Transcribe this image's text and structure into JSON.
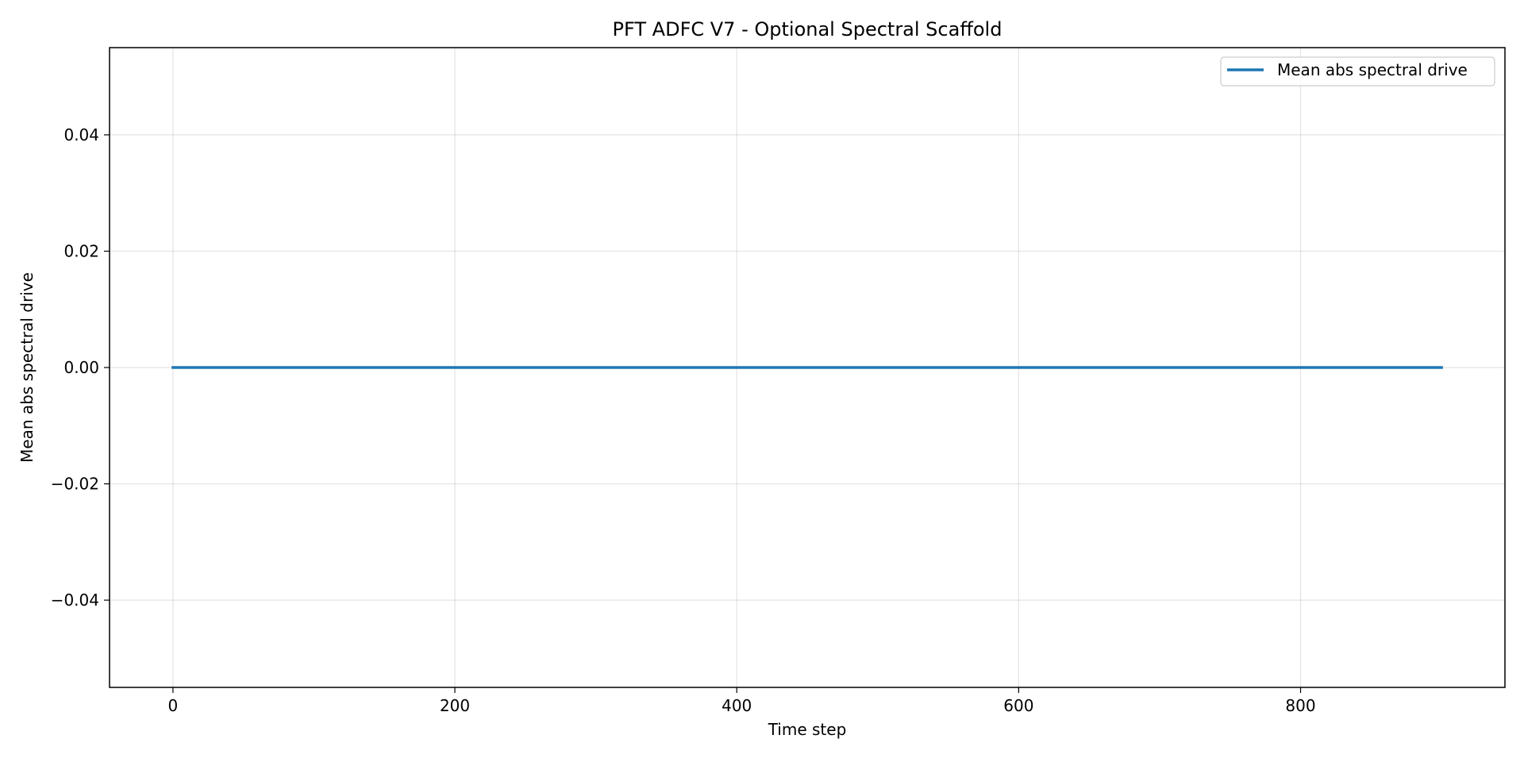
{
  "chart_data": {
    "type": "line",
    "title": "PFT ADFC V7 - Optional Spectral Scaffold",
    "xlabel": "Time step",
    "ylabel": "Mean abs spectral drive",
    "xlim": [
      -45,
      945
    ],
    "ylim": [
      -0.055,
      0.055
    ],
    "xticks": [
      0,
      200,
      400,
      600,
      800
    ],
    "xtick_labels": [
      "0",
      "200",
      "400",
      "600",
      "800"
    ],
    "yticks": [
      -0.04,
      -0.02,
      0.0,
      0.02,
      0.04
    ],
    "ytick_labels": [
      "−0.04",
      "−0.02",
      "0.00",
      "0.02",
      "0.04"
    ],
    "grid": true,
    "legend_position": "top-right",
    "series": [
      {
        "name": "Mean abs spectral drive",
        "color": "#1f77b4",
        "x": [
          0,
          900
        ],
        "y": [
          0.0,
          0.0
        ]
      }
    ]
  }
}
